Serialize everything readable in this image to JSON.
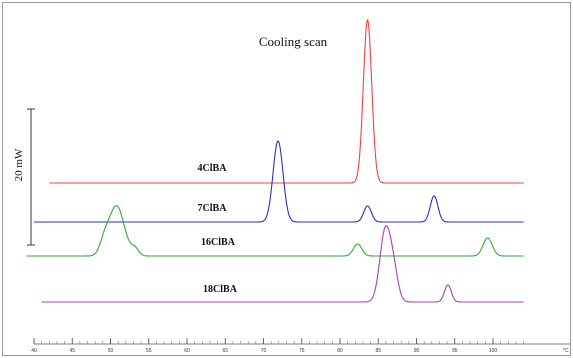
{
  "chart_data": {
    "type": "line",
    "title": "Cooling scan",
    "xlabel": "",
    "ylabel": "",
    "x_unit": "°C",
    "xlim": [
      40,
      104
    ],
    "x_ticks": [
      40,
      45,
      50,
      55,
      60,
      65,
      70,
      75,
      80,
      85,
      90,
      95,
      100
    ],
    "scale_bar_label": "20 mW",
    "grid": false,
    "series": [
      {
        "name": "4ClBA",
        "color": "#ff3b3b",
        "x_start": 42,
        "x_end": 104,
        "baseline": 0,
        "peaks": [
          {
            "x": 83.6,
            "height": 163,
            "width": 0.55
          }
        ]
      },
      {
        "name": "7ClBA",
        "color": "#2b2bd6",
        "x_start": 40,
        "x_end": 104,
        "baseline": 0,
        "peaks": [
          {
            "x": 71.9,
            "height": 81,
            "width": 0.65
          },
          {
            "x": 83.6,
            "height": 16,
            "width": 0.5
          },
          {
            "x": 92.3,
            "height": 26,
            "width": 0.5
          }
        ]
      },
      {
        "name": "16ClBA",
        "color": "#2fae2f",
        "x_start": 39,
        "x_end": 104,
        "baseline": 0,
        "peaks": [
          {
            "x": 50.8,
            "height": 50,
            "width": 1.0
          },
          {
            "x": 49.2,
            "height": 12,
            "width": 0.6
          },
          {
            "x": 53.2,
            "height": 7,
            "width": 0.5
          },
          {
            "x": 82.3,
            "height": 12,
            "width": 0.55
          },
          {
            "x": 99.3,
            "height": 18,
            "width": 0.6
          }
        ]
      },
      {
        "name": "18ClBA",
        "color": "#b43cb4",
        "x_start": 41,
        "x_end": 104,
        "baseline": 0,
        "peaks": [
          {
            "x": 85.9,
            "height": 70,
            "width": 0.7
          },
          {
            "x": 87.0,
            "height": 28,
            "width": 0.6
          },
          {
            "x": 94.1,
            "height": 17,
            "width": 0.45
          }
        ]
      }
    ]
  }
}
